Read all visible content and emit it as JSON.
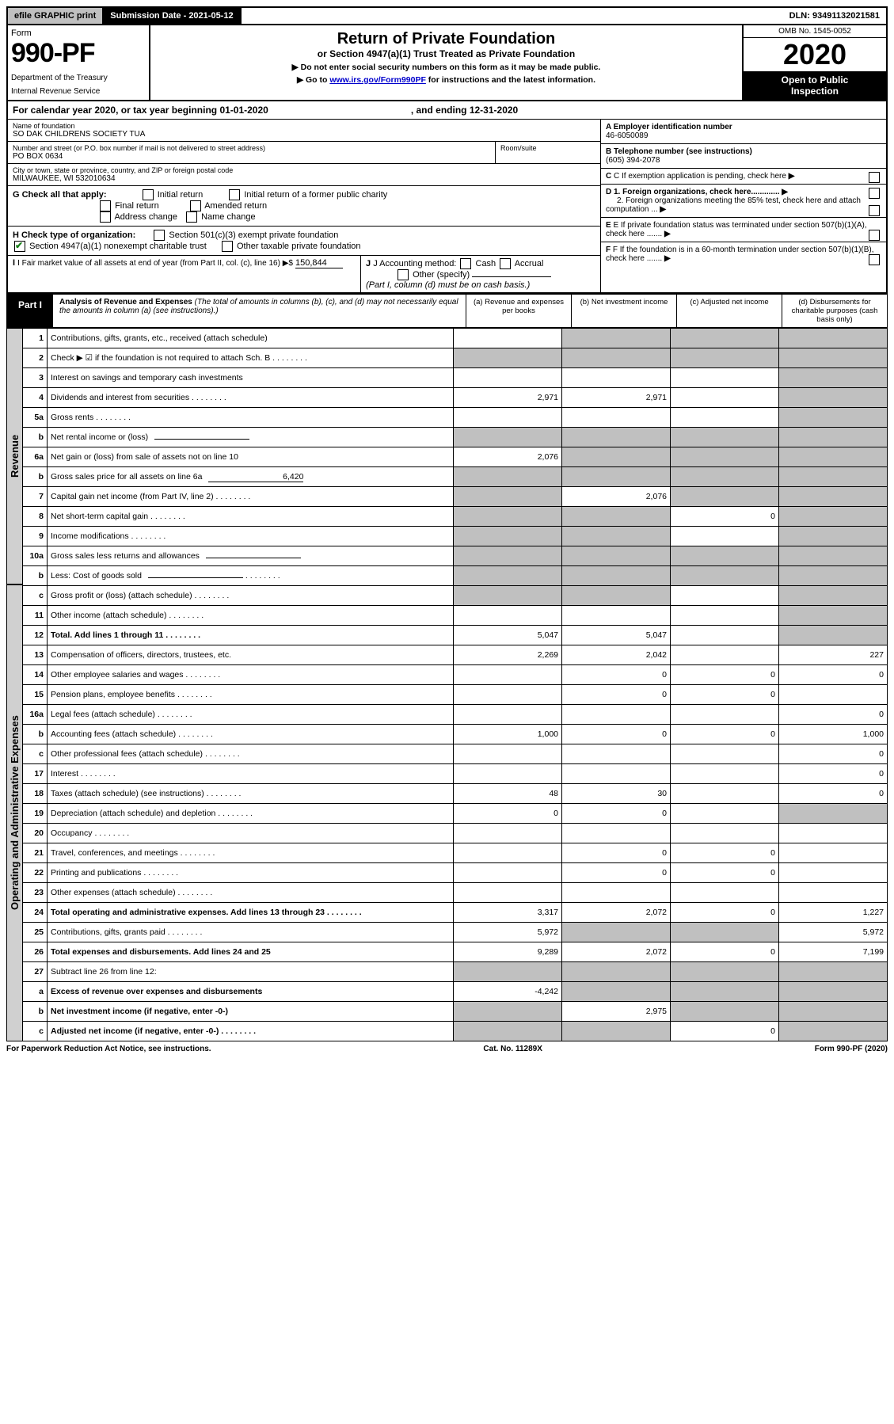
{
  "top": {
    "efile": "efile GRAPHIC print",
    "submission_label": "Submission Date - 2021-05-12",
    "dln": "DLN: 93491132021581"
  },
  "header": {
    "form_word": "Form",
    "form_number": "990-PF",
    "dept1": "Department of the Treasury",
    "dept2": "Internal Revenue Service",
    "title": "Return of Private Foundation",
    "subtitle": "or Section 4947(a)(1) Trust Treated as Private Foundation",
    "instr1": "▶ Do not enter social security numbers on this form as it may be made public.",
    "instr2_pre": "▶ Go to ",
    "instr2_link": "www.irs.gov/Form990PF",
    "instr2_post": " for instructions and the latest information.",
    "omb": "OMB No. 1545-0052",
    "year": "2020",
    "inspection1": "Open to Public",
    "inspection2": "Inspection"
  },
  "calyear": {
    "pre": "For calendar year 2020, or tax year beginning 01-01-2020",
    "mid": ", and ending 12-31-2020"
  },
  "info": {
    "name_label": "Name of foundation",
    "name": "SO DAK CHILDRENS SOCIETY TUA",
    "addr_label": "Number and street (or P.O. box number if mail is not delivered to street address)",
    "addr": "PO BOX 0634",
    "room_label": "Room/suite",
    "city_label": "City or town, state or province, country, and ZIP or foreign postal code",
    "city": "MILWAUKEE, WI  532010634",
    "a_label": "A Employer identification number",
    "a_val": "46-6050089",
    "b_label": "B Telephone number (see instructions)",
    "b_val": "(605) 394-2078",
    "c_label": "C If exemption application is pending, check here",
    "d1": "D 1. Foreign organizations, check here.............",
    "d2": "2. Foreign organizations meeting the 85% test, check here and attach computation ...",
    "e": "E  If private foundation status was terminated under section 507(b)(1)(A), check here .......",
    "f": "F  If the foundation is in a 60-month termination under section 507(b)(1)(B), check here .......",
    "g_label": "G Check all that apply:",
    "g_opts": [
      "Initial return",
      "Initial return of a former public charity",
      "Final return",
      "Amended return",
      "Address change",
      "Name change"
    ],
    "h_label": "H Check type of organization:",
    "h_opt1": "Section 501(c)(3) exempt private foundation",
    "h_opt2": "Section 4947(a)(1) nonexempt charitable trust",
    "h_opt3": "Other taxable private foundation",
    "i_label": "I Fair market value of all assets at end of year (from Part II, col. (c), line 16) ▶$",
    "i_val": "150,844",
    "j_label": "J Accounting method:",
    "j_cash": "Cash",
    "j_accrual": "Accrual",
    "j_other": "Other (specify)",
    "j_note": "(Part I, column (d) must be on cash basis.)"
  },
  "part1": {
    "tag": "Part I",
    "title": "Analysis of Revenue and Expenses",
    "title_note": " (The total of amounts in columns (b), (c), and (d) may not necessarily equal the amounts in column (a) (see instructions).)",
    "col_a": "(a)  Revenue and expenses per books",
    "col_b": "(b)  Net investment income",
    "col_c": "(c)  Adjusted net income",
    "col_d": "(d)  Disbursements for charitable purposes (cash basis only)"
  },
  "vert": {
    "revenue": "Revenue",
    "expenses": "Operating and Administrative Expenses"
  },
  "rows": [
    {
      "n": "1",
      "d": "Contributions, gifts, grants, etc., received (attach schedule)",
      "a": "",
      "b": "gray",
      "c": "gray",
      "dd": "gray"
    },
    {
      "n": "2",
      "d": "Check ▶ ☑ if the foundation is not required to attach Sch. B",
      "dots": true,
      "a": "gray",
      "b": "gray",
      "c": "gray",
      "dd": "gray"
    },
    {
      "n": "3",
      "d": "Interest on savings and temporary cash investments",
      "a": "",
      "b": "",
      "c": "",
      "dd": "gray"
    },
    {
      "n": "4",
      "d": "Dividends and interest from securities",
      "dots": true,
      "a": "2,971",
      "b": "2,971",
      "c": "",
      "dd": "gray"
    },
    {
      "n": "5a",
      "d": "Gross rents",
      "dots": true,
      "a": "",
      "b": "",
      "c": "",
      "dd": "gray"
    },
    {
      "n": "b",
      "d": "Net rental income or (loss)",
      "inline": true,
      "a": "gray",
      "b": "gray",
      "c": "gray",
      "dd": "gray"
    },
    {
      "n": "6a",
      "d": "Net gain or (loss) from sale of assets not on line 10",
      "a": "2,076",
      "b": "gray",
      "c": "gray",
      "dd": "gray"
    },
    {
      "n": "b",
      "d": "Gross sales price for all assets on line 6a",
      "inline_val": "6,420",
      "a": "gray",
      "b": "gray",
      "c": "gray",
      "dd": "gray"
    },
    {
      "n": "7",
      "d": "Capital gain net income (from Part IV, line 2)",
      "dots": true,
      "a": "gray",
      "b": "2,076",
      "c": "gray",
      "dd": "gray"
    },
    {
      "n": "8",
      "d": "Net short-term capital gain",
      "dots": true,
      "a": "gray",
      "b": "gray",
      "c": "0",
      "dd": "gray"
    },
    {
      "n": "9",
      "d": "Income modifications",
      "dots": true,
      "a": "gray",
      "b": "gray",
      "c": "",
      "dd": "gray"
    },
    {
      "n": "10a",
      "d": "Gross sales less returns and allowances",
      "inline": true,
      "a": "gray",
      "b": "gray",
      "c": "gray",
      "dd": "gray"
    },
    {
      "n": "b",
      "d": "Less: Cost of goods sold",
      "dots": true,
      "inline": true,
      "a": "gray",
      "b": "gray",
      "c": "gray",
      "dd": "gray"
    },
    {
      "n": "c",
      "d": "Gross profit or (loss) (attach schedule)",
      "dots": true,
      "a": "gray",
      "b": "gray",
      "c": "",
      "dd": "gray"
    },
    {
      "n": "11",
      "d": "Other income (attach schedule)",
      "dots": true,
      "a": "",
      "b": "",
      "c": "",
      "dd": "gray"
    },
    {
      "n": "12",
      "d": "Total. Add lines 1 through 11",
      "dots": true,
      "bold": true,
      "a": "5,047",
      "b": "5,047",
      "c": "",
      "dd": "gray"
    },
    {
      "n": "13",
      "d": "Compensation of officers, directors, trustees, etc.",
      "a": "2,269",
      "b": "2,042",
      "c": "",
      "dd": "227"
    },
    {
      "n": "14",
      "d": "Other employee salaries and wages",
      "dots": true,
      "a": "",
      "b": "0",
      "c": "0",
      "dd": "0"
    },
    {
      "n": "15",
      "d": "Pension plans, employee benefits",
      "dots": true,
      "a": "",
      "b": "0",
      "c": "0",
      "dd": ""
    },
    {
      "n": "16a",
      "d": "Legal fees (attach schedule)",
      "dots": true,
      "a": "",
      "b": "",
      "c": "",
      "dd": "0"
    },
    {
      "n": "b",
      "d": "Accounting fees (attach schedule)",
      "dots": true,
      "a": "1,000",
      "b": "0",
      "c": "0",
      "dd": "1,000"
    },
    {
      "n": "c",
      "d": "Other professional fees (attach schedule)",
      "dots": true,
      "a": "",
      "b": "",
      "c": "",
      "dd": "0"
    },
    {
      "n": "17",
      "d": "Interest",
      "dots": true,
      "a": "",
      "b": "",
      "c": "",
      "dd": "0"
    },
    {
      "n": "18",
      "d": "Taxes (attach schedule) (see instructions)",
      "dots": true,
      "a": "48",
      "b": "30",
      "c": "",
      "dd": "0"
    },
    {
      "n": "19",
      "d": "Depreciation (attach schedule) and depletion",
      "dots": true,
      "a": "0",
      "b": "0",
      "c": "",
      "dd": "gray"
    },
    {
      "n": "20",
      "d": "Occupancy",
      "dots": true,
      "a": "",
      "b": "",
      "c": "",
      "dd": ""
    },
    {
      "n": "21",
      "d": "Travel, conferences, and meetings",
      "dots": true,
      "a": "",
      "b": "0",
      "c": "0",
      "dd": ""
    },
    {
      "n": "22",
      "d": "Printing and publications",
      "dots": true,
      "a": "",
      "b": "0",
      "c": "0",
      "dd": ""
    },
    {
      "n": "23",
      "d": "Other expenses (attach schedule)",
      "dots": true,
      "a": "",
      "b": "",
      "c": "",
      "dd": ""
    },
    {
      "n": "24",
      "d": "Total operating and administrative expenses. Add lines 13 through 23",
      "dots": true,
      "bold": true,
      "a": "3,317",
      "b": "2,072",
      "c": "0",
      "dd": "1,227"
    },
    {
      "n": "25",
      "d": "Contributions, gifts, grants paid",
      "dots": true,
      "a": "5,972",
      "b": "gray",
      "c": "gray",
      "dd": "5,972"
    },
    {
      "n": "26",
      "d": "Total expenses and disbursements. Add lines 24 and 25",
      "bold": true,
      "a": "9,289",
      "b": "2,072",
      "c": "0",
      "dd": "7,199"
    },
    {
      "n": "27",
      "d": "Subtract line 26 from line 12:",
      "a": "gray",
      "b": "gray",
      "c": "gray",
      "dd": "gray"
    },
    {
      "n": "a",
      "d": "Excess of revenue over expenses and disbursements",
      "bold": true,
      "a": "-4,242",
      "b": "gray",
      "c": "gray",
      "dd": "gray"
    },
    {
      "n": "b",
      "d": "Net investment income (if negative, enter -0-)",
      "bold": true,
      "a": "gray",
      "b": "2,975",
      "c": "gray",
      "dd": "gray"
    },
    {
      "n": "c",
      "d": "Adjusted net income (if negative, enter -0-)",
      "bold": true,
      "dots": true,
      "a": "gray",
      "b": "gray",
      "c": "0",
      "dd": "gray"
    }
  ],
  "footer": {
    "left": "For Paperwork Reduction Act Notice, see instructions.",
    "mid": "Cat. No. 11289X",
    "right": "Form 990-PF (2020)"
  }
}
